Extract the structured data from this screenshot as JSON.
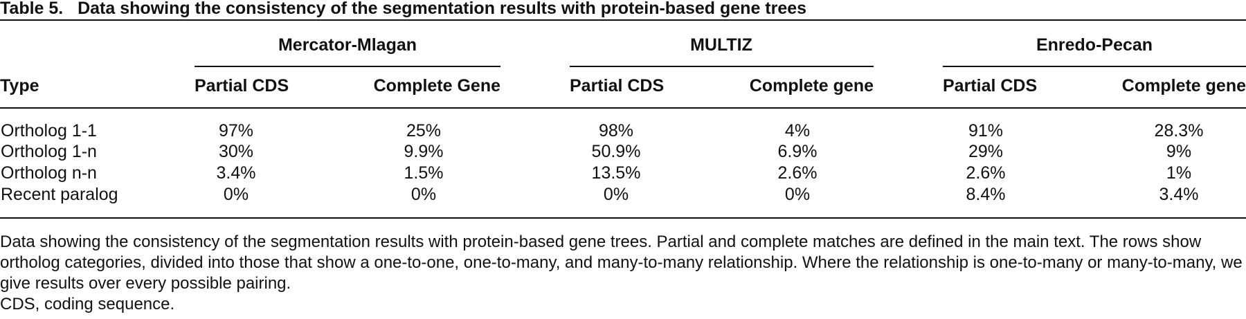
{
  "title": {
    "label": "Table 5.",
    "text": "Data showing the consistency of the segmentation results with protein-based gene trees"
  },
  "table": {
    "groups": [
      "Mercator-Mlagan",
      "MULTIZ",
      "Enredo-Pecan"
    ],
    "header": [
      "Type",
      "Partial CDS",
      "Complete Gene",
      "Partial CDS",
      "Complete gene",
      "Partial CDS",
      "Complete gene"
    ],
    "rows": [
      [
        "Ortholog 1-1",
        "97%",
        "25%",
        "98%",
        "4%",
        "91%",
        "28.3%"
      ],
      [
        "Ortholog 1-n",
        "30%",
        "9.9%",
        "50.9%",
        "6.9%",
        "29%",
        "9%"
      ],
      [
        "Ortholog n-n",
        "3.4%",
        "1.5%",
        "13.5%",
        "2.6%",
        "2.6%",
        "1%"
      ],
      [
        "Recent paralog",
        "0%",
        "0%",
        "0%",
        "0%",
        "8.4%",
        "3.4%"
      ]
    ]
  },
  "footnote": {
    "text": "Data showing the consistency of the segmentation results with protein-based gene trees. Partial and complete matches are defined in the main text. The rows show ortholog categories, divided into those that show a one-to-one, one-to-many, and many-to-many relationship. Where the relationship is one-to-many or many-to-many, we give results over every possible pairing.",
    "abbreviation": "CDS, coding sequence."
  }
}
